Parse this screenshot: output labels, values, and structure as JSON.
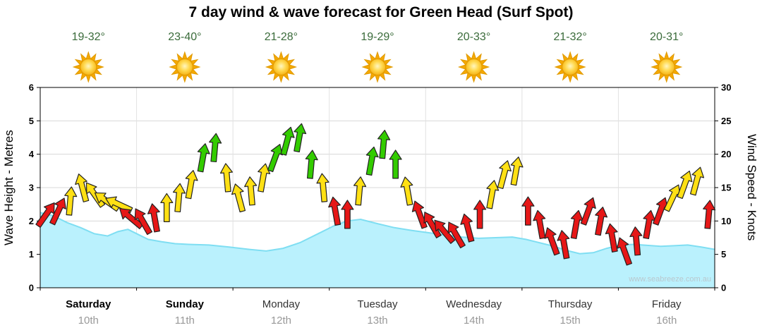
{
  "header": {
    "title": "7 day wind & wave forecast for Green Head (Surf Spot)"
  },
  "axes": {
    "left_title": "Wave Height - Metres",
    "right_title": "Wind Speed - Knots"
  },
  "watermark": "www.seabreeze.com.au",
  "colors": {
    "temperature": "#3a6b3a",
    "grid": "#d8d8d8",
    "grid_vertical": "#e2e2e2",
    "plot_border": "#000000",
    "weekend_label": "#000000",
    "weekday_label": "#333333",
    "date_label": "#999999",
    "sun_ray": "#f5a800",
    "sun_core_edge": "#e09a00"
  },
  "days": [
    {
      "name": "Saturday",
      "date": "10th",
      "temp": "19-32°",
      "weather": "sunny",
      "weekend": true
    },
    {
      "name": "Sunday",
      "date": "11th",
      "temp": "23-40°",
      "weather": "sunny",
      "weekend": true
    },
    {
      "name": "Monday",
      "date": "12th",
      "temp": "21-28°",
      "weather": "sunny",
      "weekend": false
    },
    {
      "name": "Tuesday",
      "date": "13th",
      "temp": "19-29°",
      "weather": "sunny",
      "weekend": false
    },
    {
      "name": "Wednesday",
      "date": "14th",
      "temp": "20-33°",
      "weather": "sunny",
      "weekend": false
    },
    {
      "name": "Thursday",
      "date": "15th",
      "temp": "21-32°",
      "weather": "sunny",
      "weekend": false
    },
    {
      "name": "Friday",
      "date": "16th",
      "temp": "20-31°",
      "weather": "sunny",
      "weekend": false
    }
  ],
  "chart_data": {
    "type": "area",
    "title": "7 day wind & wave forecast for Green Head (Surf Spot)",
    "x_categories": [
      "Saturday",
      "Sunday",
      "Monday",
      "Tuesday",
      "Wednesday",
      "Thursday",
      "Friday"
    ],
    "x_dates": [
      "10th",
      "11th",
      "12th",
      "13th",
      "14th",
      "15th",
      "16th"
    ],
    "left_axis": {
      "label": "Wave Height - Metres",
      "range": [
        0,
        6
      ],
      "ticks": [
        0,
        1,
        2,
        3,
        4,
        5,
        6
      ]
    },
    "right_axis": {
      "label": "Wind Speed - Knots",
      "range": [
        0,
        30
      ],
      "ticks": [
        0,
        5,
        10,
        15,
        20,
        25,
        30
      ]
    },
    "grid": true,
    "wave_style": {
      "fill": "#baf1fd",
      "stroke": "#7fdef2"
    },
    "wave_height_m": {
      "name": "Wave Height (metres)",
      "points": [
        [
          0,
          2.25
        ],
        [
          0.02,
          2.15
        ],
        [
          0.04,
          1.95
        ],
        [
          0.06,
          1.8
        ],
        [
          0.08,
          1.62
        ],
        [
          0.1,
          1.55
        ],
        [
          0.115,
          1.68
        ],
        [
          0.13,
          1.75
        ],
        [
          0.145,
          1.6
        ],
        [
          0.16,
          1.45
        ],
        [
          0.18,
          1.38
        ],
        [
          0.2,
          1.32
        ],
        [
          0.22,
          1.3
        ],
        [
          0.25,
          1.28
        ],
        [
          0.28,
          1.22
        ],
        [
          0.31,
          1.15
        ],
        [
          0.335,
          1.1
        ],
        [
          0.36,
          1.18
        ],
        [
          0.385,
          1.35
        ],
        [
          0.41,
          1.6
        ],
        [
          0.435,
          1.85
        ],
        [
          0.455,
          2.0
        ],
        [
          0.475,
          2.05
        ],
        [
          0.5,
          1.92
        ],
        [
          0.525,
          1.8
        ],
        [
          0.55,
          1.72
        ],
        [
          0.575,
          1.65
        ],
        [
          0.6,
          1.58
        ],
        [
          0.625,
          1.52
        ],
        [
          0.65,
          1.48
        ],
        [
          0.675,
          1.5
        ],
        [
          0.7,
          1.52
        ],
        [
          0.72,
          1.45
        ],
        [
          0.74,
          1.35
        ],
        [
          0.76,
          1.25
        ],
        [
          0.78,
          1.12
        ],
        [
          0.8,
          1.02
        ],
        [
          0.82,
          1.05
        ],
        [
          0.84,
          1.18
        ],
        [
          0.86,
          1.28
        ],
        [
          0.88,
          1.3
        ],
        [
          0.9,
          1.27
        ],
        [
          0.92,
          1.24
        ],
        [
          0.94,
          1.26
        ],
        [
          0.96,
          1.28
        ],
        [
          0.98,
          1.22
        ],
        [
          1,
          1.15
        ]
      ]
    },
    "wind": {
      "name": "Wind Speed (knots)",
      "arrow_format": [
        "t_fraction",
        "knots",
        "direction_deg_0_is_up"
      ],
      "arrows": [
        [
          0.0089,
          11,
          35
        ],
        [
          0.0268,
          11.5,
          25
        ],
        [
          0.0446,
          13,
          5
        ],
        [
          0.0625,
          15,
          -15
        ],
        [
          0.0804,
          14,
          -35
        ],
        [
          0.0982,
          13,
          -55
        ],
        [
          0.1161,
          12.5,
          -65
        ],
        [
          0.1339,
          10.5,
          -50
        ],
        [
          0.1518,
          10,
          -30
        ],
        [
          0.1696,
          10.5,
          -10
        ],
        [
          0.1875,
          12,
          0
        ],
        [
          0.2054,
          13.5,
          5
        ],
        [
          0.2232,
          15.5,
          10
        ],
        [
          0.2411,
          19.5,
          10
        ],
        [
          0.2589,
          21,
          5
        ],
        [
          0.2768,
          16.5,
          -5
        ],
        [
          0.2946,
          13.5,
          -15
        ],
        [
          0.3125,
          14.5,
          -5
        ],
        [
          0.3304,
          16.5,
          10
        ],
        [
          0.3482,
          19.5,
          20
        ],
        [
          0.3661,
          22,
          15
        ],
        [
          0.3839,
          22.5,
          10
        ],
        [
          0.4018,
          18.5,
          5
        ],
        [
          0.4196,
          15,
          -5
        ],
        [
          0.4375,
          11.5,
          -10
        ],
        [
          0.4554,
          11,
          0
        ],
        [
          0.4732,
          14.5,
          5
        ],
        [
          0.4911,
          19,
          10
        ],
        [
          0.5089,
          21.5,
          5
        ],
        [
          0.5268,
          18.5,
          0
        ],
        [
          0.5446,
          14.5,
          -10
        ],
        [
          0.5625,
          11,
          -20
        ],
        [
          0.5804,
          9.5,
          -30
        ],
        [
          0.5982,
          8.5,
          -40
        ],
        [
          0.6161,
          8,
          -30
        ],
        [
          0.6339,
          9,
          -15
        ],
        [
          0.6518,
          11,
          0
        ],
        [
          0.6696,
          14,
          10
        ],
        [
          0.6875,
          17,
          15
        ],
        [
          0.7054,
          17.5,
          10
        ],
        [
          0.7232,
          11.5,
          0
        ],
        [
          0.7411,
          9.5,
          -10
        ],
        [
          0.7589,
          7,
          -20
        ],
        [
          0.7768,
          6.5,
          -10
        ],
        [
          0.7946,
          9.5,
          10
        ],
        [
          0.8125,
          11.5,
          20
        ],
        [
          0.8304,
          10,
          10
        ],
        [
          0.8482,
          7.5,
          -10
        ],
        [
          0.8661,
          5.5,
          -20
        ],
        [
          0.8839,
          7,
          -5
        ],
        [
          0.9018,
          9.5,
          10
        ],
        [
          0.9196,
          11.5,
          20
        ],
        [
          0.9375,
          13.5,
          25
        ],
        [
          0.9554,
          15.5,
          20
        ],
        [
          0.9732,
          16,
          15
        ],
        [
          0.9911,
          11,
          5
        ]
      ],
      "color_rules": {
        "red_below_kn": 12,
        "yellow_below_kn": 18,
        "green_at_or_above_kn": 18
      },
      "arrow_colors": {
        "red": "#e61717",
        "yellow": "#ffe014",
        "green": "#33cc00",
        "outline": "#222222"
      }
    }
  }
}
